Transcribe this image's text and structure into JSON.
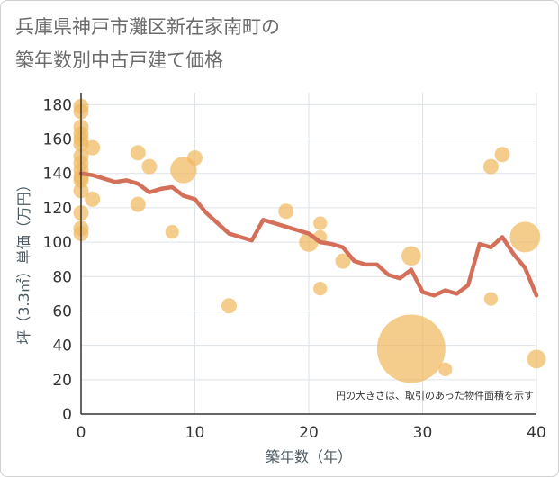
{
  "title_line1": "兵庫県神戸市灘区新在家南町の",
  "title_line2": "築年数別中古戸建て価格",
  "chart_data": {
    "type": "scatter",
    "title": "兵庫県神戸市灘区新在家南町の築年数別中古戸建て価格",
    "xlabel": "築年数（年）",
    "ylabel": "坪（3.3㎡）単価（万円）",
    "xlim": [
      0,
      40
    ],
    "ylim": [
      0,
      187
    ],
    "xticks": [
      0,
      10,
      20,
      30,
      40
    ],
    "yticks": [
      0,
      20,
      40,
      60,
      80,
      100,
      120,
      140,
      160,
      180
    ],
    "grid": true,
    "note": "円の大きさは、取引のあった物件面積を示す",
    "colors": {
      "bubble": "#f0b860",
      "line": "#d4705a",
      "grid": "#dde3e8"
    },
    "points": [
      {
        "x": 0,
        "y": 179,
        "size": 1
      },
      {
        "x": 0,
        "y": 176,
        "size": 1
      },
      {
        "x": 0,
        "y": 167,
        "size": 1
      },
      {
        "x": 0,
        "y": 163,
        "size": 1
      },
      {
        "x": 0,
        "y": 160,
        "size": 1
      },
      {
        "x": 0,
        "y": 157,
        "size": 1
      },
      {
        "x": 0,
        "y": 150,
        "size": 1
      },
      {
        "x": 0,
        "y": 146,
        "size": 1
      },
      {
        "x": 0,
        "y": 142,
        "size": 1
      },
      {
        "x": 0,
        "y": 138,
        "size": 1
      },
      {
        "x": 0,
        "y": 136,
        "size": 1
      },
      {
        "x": 0,
        "y": 130,
        "size": 1
      },
      {
        "x": 0,
        "y": 117,
        "size": 1
      },
      {
        "x": 0,
        "y": 108,
        "size": 1
      },
      {
        "x": 0,
        "y": 105,
        "size": 1
      },
      {
        "x": 1,
        "y": 155,
        "size": 1
      },
      {
        "x": 1,
        "y": 125,
        "size": 1
      },
      {
        "x": 5,
        "y": 152,
        "size": 1
      },
      {
        "x": 5,
        "y": 122,
        "size": 1
      },
      {
        "x": 6,
        "y": 144,
        "size": 1
      },
      {
        "x": 8,
        "y": 106,
        "size": 0.8
      },
      {
        "x": 9,
        "y": 142,
        "size": 3
      },
      {
        "x": 10,
        "y": 149,
        "size": 1
      },
      {
        "x": 13,
        "y": 63,
        "size": 1
      },
      {
        "x": 18,
        "y": 118,
        "size": 1
      },
      {
        "x": 20,
        "y": 100,
        "size": 1.6
      },
      {
        "x": 21,
        "y": 111,
        "size": 0.8
      },
      {
        "x": 21,
        "y": 103,
        "size": 0.8
      },
      {
        "x": 21,
        "y": 73,
        "size": 0.8
      },
      {
        "x": 23,
        "y": 89,
        "size": 1
      },
      {
        "x": 29,
        "y": 92,
        "size": 1.6
      },
      {
        "x": 29,
        "y": 38,
        "size": 20
      },
      {
        "x": 32,
        "y": 26,
        "size": 0.8
      },
      {
        "x": 36,
        "y": 144,
        "size": 1
      },
      {
        "x": 36,
        "y": 67,
        "size": 0.8
      },
      {
        "x": 37,
        "y": 151,
        "size": 1
      },
      {
        "x": 39,
        "y": 103,
        "size": 4
      },
      {
        "x": 40,
        "y": 32,
        "size": 1.5
      }
    ],
    "trend": {
      "x": [
        0,
        1,
        2,
        3,
        4,
        5,
        6,
        7,
        8,
        9,
        10,
        11,
        12,
        13,
        14,
        15,
        16,
        17,
        18,
        19,
        20,
        21,
        22,
        23,
        24,
        25,
        26,
        27,
        28,
        29,
        30,
        31,
        32,
        33,
        34,
        35,
        36,
        37,
        38,
        39,
        40
      ],
      "y": [
        140,
        139,
        137,
        135,
        136,
        134,
        129,
        131,
        132,
        127,
        125,
        117,
        111,
        105,
        103,
        101,
        113,
        111,
        109,
        107,
        105,
        100,
        99,
        97,
        89,
        87,
        87,
        81,
        79,
        84,
        71,
        69,
        72,
        70,
        75,
        99,
        97,
        103,
        93,
        85,
        69
      ]
    }
  }
}
